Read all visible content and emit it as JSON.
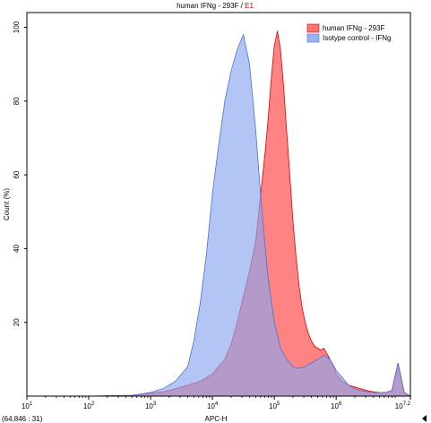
{
  "chart_data": {
    "type": "area",
    "title": {
      "text": "human IFNg - 293F",
      "separator": " / ",
      "gate": "E1",
      "gate_color": "#cc0000"
    },
    "xlabel": "APC-H",
    "ylabel": "Count (%)",
    "x_scale": "log",
    "xlim": [
      10,
      15848932
    ],
    "ylim": [
      0,
      104
    ],
    "x_ticks": [
      {
        "base": "10",
        "exp": "1",
        "value": 10
      },
      {
        "base": "10",
        "exp": "2",
        "value": 100
      },
      {
        "base": "10",
        "exp": "3",
        "value": 1000
      },
      {
        "base": "10",
        "exp": "4",
        "value": 10000
      },
      {
        "base": "10",
        "exp": "5",
        "value": 100000
      },
      {
        "base": "10",
        "exp": "6",
        "value": 1000000
      },
      {
        "base": "10",
        "exp": "7.2",
        "value": 15848932
      }
    ],
    "y_ticks": [
      "20",
      "40",
      "60",
      "80",
      "100"
    ],
    "y_tick_values": [
      20,
      40,
      60,
      80,
      100
    ],
    "legend_position": "top-right",
    "coordinate_readout": "(64,846 : 31)",
    "series": [
      {
        "name": "human IFNg - 293F",
        "fill": "#ff5a5a",
        "fill_opacity": 0.75,
        "stroke": "#e00000",
        "x": [
          10,
          100,
          501,
          1000,
          1585,
          2512,
          3981,
          6310,
          10000,
          15849,
          19953,
          25119,
          31623,
          39811,
          50119,
          56234,
          63096,
          70795,
          79433,
          89125,
          100000,
          112202,
          125893,
          141254,
          158489,
          177828,
          199526,
          223872,
          251189,
          281838,
          316228,
          354813,
          398107,
          446684,
          501187,
          562341,
          630957,
          707946,
          794328,
          891251,
          1000000,
          1258925,
          1584893,
          1995262,
          2511886,
          3162278,
          3981072,
          5011872,
          6309573,
          7943282,
          10000000,
          12589254,
          15848932
        ],
        "y": [
          0,
          0,
          0.2,
          0.8,
          1.2,
          2,
          3,
          4,
          6,
          10,
          14,
          20,
          27,
          34,
          42,
          50,
          58,
          66,
          75,
          86,
          95,
          99,
          94,
          84,
          72,
          60,
          48,
          38,
          30,
          24,
          20,
          17,
          15,
          13.5,
          13,
          12.5,
          13,
          11.5,
          10,
          8.5,
          6,
          4,
          3,
          2.5,
          2,
          1.5,
          1.2,
          1,
          1,
          1.5,
          9,
          1,
          0
        ]
      },
      {
        "name": "Isotype control - IFNg",
        "fill": "#8aa6ee",
        "fill_opacity": 0.65,
        "stroke": "#4a6fd9",
        "x": [
          10,
          100,
          501,
          1000,
          1585,
          2512,
          3981,
          5012,
          6310,
          7943,
          10000,
          12589,
          15849,
          19953,
          25119,
          31623,
          39811,
          50119,
          63096,
          79433,
          100000,
          125893,
          158489,
          199526,
          251189,
          316228,
          398107,
          501187,
          630957,
          794328,
          1000000,
          1258925,
          1584893,
          1995262,
          2511886,
          3162278,
          3981072,
          5011872,
          6309573,
          7943282,
          10000000,
          12589254,
          15848932
        ],
        "y": [
          0,
          0,
          0.2,
          1,
          2,
          4,
          8,
          15,
          25,
          38,
          55,
          68,
          80,
          88,
          94,
          98,
          90,
          72,
          50,
          32,
          20,
          13,
          10,
          8,
          7.5,
          8,
          9,
          10,
          11,
          10,
          7,
          5,
          3,
          2,
          1.5,
          1.2,
          1,
          1,
          1,
          1.5,
          9,
          1,
          0
        ]
      }
    ]
  }
}
